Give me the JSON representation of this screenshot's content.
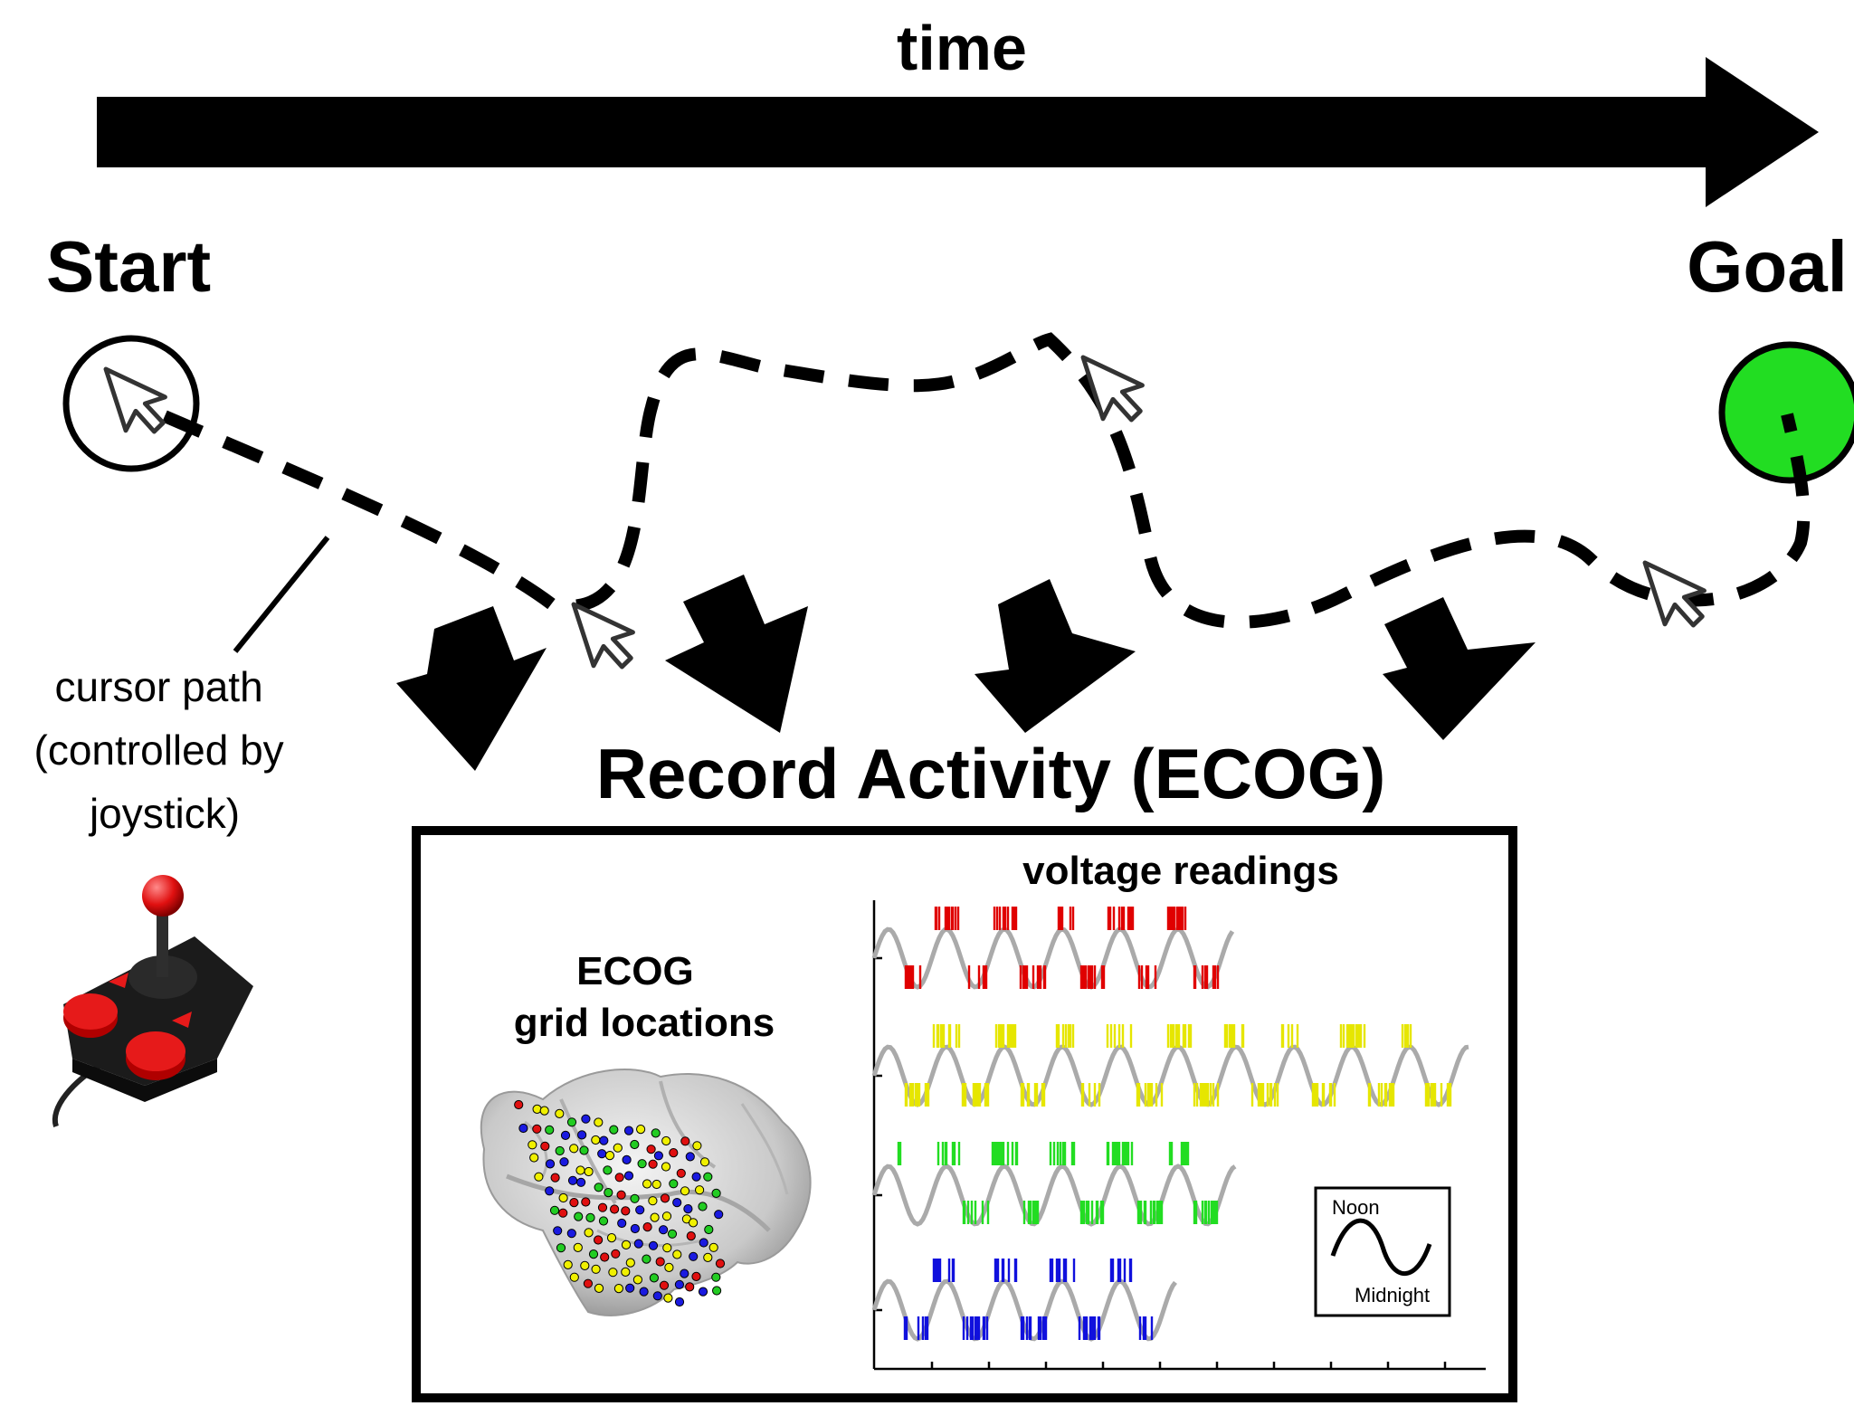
{
  "timeline": {
    "label": "time"
  },
  "start": {
    "label": "Start"
  },
  "goal": {
    "label": "Goal",
    "color": "#22dd22"
  },
  "cursor_path": {
    "label_lines": [
      "cursor path",
      "(controlled by",
      "joystick)"
    ]
  },
  "record": {
    "title": "Record Activity (ECOG)"
  },
  "ecog": {
    "title_lines": [
      "ECOG",
      "grid locations"
    ],
    "electrode_colors": [
      "#e01010",
      "#1a1ae0",
      "#22cc22",
      "#f0f000"
    ]
  },
  "voltage": {
    "title": "voltage readings",
    "channel_colors": [
      "#e00000",
      "#e6e600",
      "#22dd22",
      "#1010dd"
    ],
    "sine_color": "#aaaaaa"
  },
  "legend": {
    "top": "Noon",
    "bottom": "Midnight"
  }
}
